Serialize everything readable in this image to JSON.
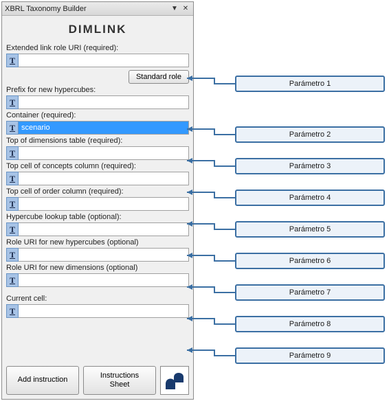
{
  "panel": {
    "windowTitle": "XBRL Taxonomy Builder",
    "mainTitle": "DIMLINK",
    "fields": [
      {
        "label": "Extended link role URI (required):",
        "value": "",
        "selected": false
      },
      {
        "label": "Prefix for new hypercubes:",
        "value": "",
        "selected": false
      },
      {
        "label": "Container (required):",
        "value": "scenario",
        "selected": true
      },
      {
        "label": "Top of dimensions table (required):",
        "value": "",
        "selected": false
      },
      {
        "label": "Top cell of concepts column (required):",
        "value": "",
        "selected": false
      },
      {
        "label": "Top cell of order column (required):",
        "value": "",
        "selected": false
      },
      {
        "label": "Hypercube lookup table (optional):",
        "value": "",
        "selected": false
      },
      {
        "label": "Role URI for new hypercubes (optional)",
        "value": "",
        "selected": false
      },
      {
        "label": "Role URI for new dimensions (optional)",
        "value": "",
        "selected": false
      }
    ],
    "currentCellLabel": "Current cell:",
    "stdRoleLabel": "Standard role",
    "addInstructionLabel": "Add instruction",
    "instructionsSheetLabel": "Instructions\nSheet"
  },
  "callouts": [
    "Parámetro 1",
    "Parámetro 2",
    "Parámetro 3",
    "Parámetro 4",
    "Parámetro 5",
    "Parámetro 6",
    "Parámetro 7",
    "Parámetro 8",
    "Parámetro 9"
  ],
  "style": {
    "panelBg": "#f0f0f0",
    "calloutBg": "#ecf2f9",
    "calloutBorder": "#3b6fa3",
    "selectedBg": "#3399ff",
    "selectedFg": "#ffffff",
    "tIconBg": "#a7c3e6",
    "tIconBorder": "#6a94c4",
    "logoAccent": "#183a6d"
  },
  "layout": {
    "panelWidth": 280,
    "calloutBoxLeft": 340,
    "fieldTops": [
      112,
      186,
      232,
      278,
      324,
      370,
      416,
      462,
      508
    ],
    "calloutTops": [
      108,
      182,
      228,
      274,
      320,
      366,
      412,
      458,
      504
    ]
  }
}
